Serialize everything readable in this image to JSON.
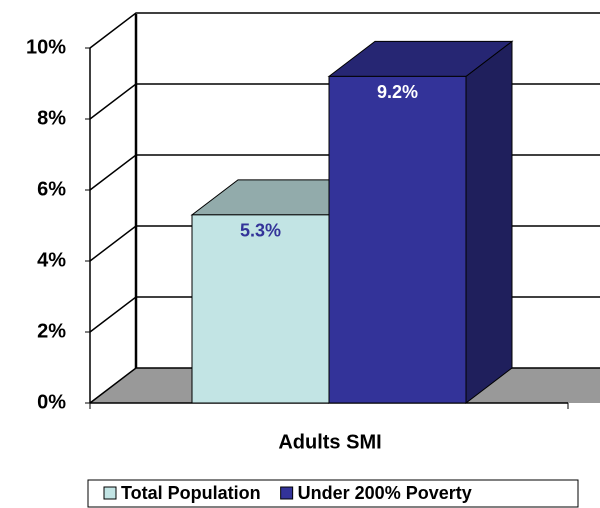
{
  "chart_data": {
    "type": "bar3d",
    "categories": [
      "Adults SMI"
    ],
    "series": [
      {
        "name": "Total Population",
        "color": "#c2e4e4",
        "values": [
          5.3
        ],
        "value_labels": [
          "5.3%"
        ]
      },
      {
        "name": "Under 200% Poverty",
        "color": "#333399",
        "values": [
          9.2
        ],
        "value_labels": [
          "9.2%"
        ]
      }
    ],
    "ylim": [
      0,
      10
    ],
    "yticks": [
      {
        "value": 0,
        "label": "0%"
      },
      {
        "value": 2,
        "label": "2%"
      },
      {
        "value": 4,
        "label": "4%"
      },
      {
        "value": 6,
        "label": "6%"
      },
      {
        "value": 8,
        "label": "8%"
      },
      {
        "value": 10,
        "label": "10%"
      }
    ],
    "grid": true,
    "legend": "bottom"
  }
}
